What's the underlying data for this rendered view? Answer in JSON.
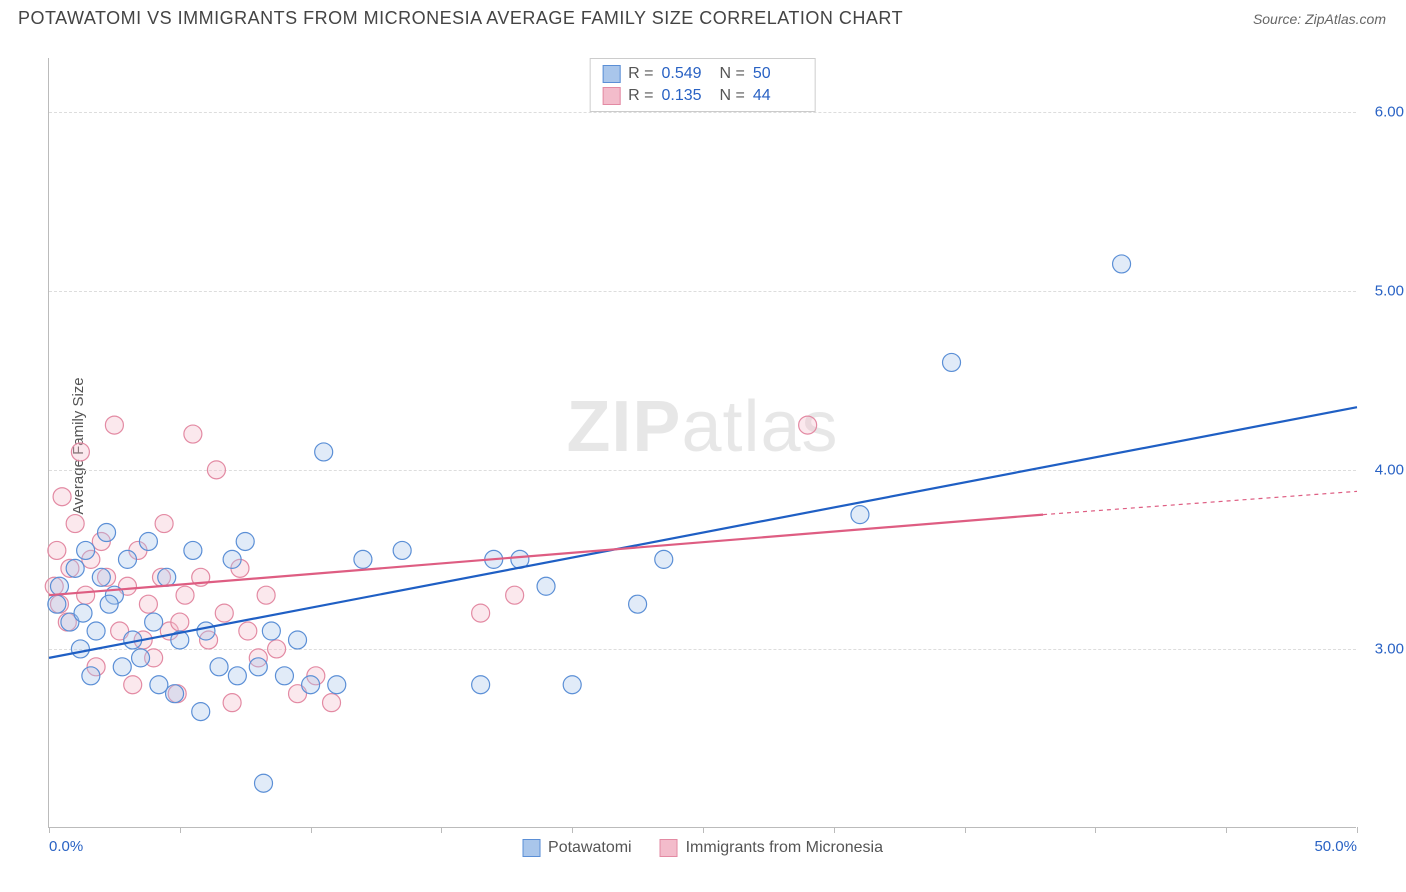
{
  "title": "POTAWATOMI VS IMMIGRANTS FROM MICRONESIA AVERAGE FAMILY SIZE CORRELATION CHART",
  "source_label": "Source:",
  "source_value": "ZipAtlas.com",
  "y_axis_label": "Average Family Size",
  "watermark_bold": "ZIP",
  "watermark_rest": "atlas",
  "chart": {
    "type": "scatter",
    "xlim": [
      0,
      50
    ],
    "ylim": [
      2.0,
      6.3
    ],
    "x_tick_positions": [
      0,
      5,
      10,
      15,
      20,
      25,
      30,
      35,
      40,
      45,
      50
    ],
    "x_tick_labels_shown": {
      "0": "0.0%",
      "50": "50.0%"
    },
    "y_gridlines": [
      3.0,
      4.0,
      5.0,
      6.0
    ],
    "y_tick_labels": {
      "3.0": "3.00",
      "4.0": "4.00",
      "5.0": "5.00",
      "6.0": "6.00"
    },
    "grid_color": "#dddddd",
    "axis_color": "#bbbbbb",
    "tick_label_color": "#2962c4",
    "marker_radius": 9,
    "marker_stroke_width": 1.2,
    "marker_fill_opacity": 0.35,
    "trend_line_width": 2.2,
    "series": [
      {
        "name": "Potawatomi",
        "legend_label": "Potawatomi",
        "color_stroke": "#5b8fd6",
        "color_fill": "#a9c6eb",
        "trend_color": "#1f5fc4",
        "R_label": "R =",
        "R": "0.549",
        "N_label": "N =",
        "N": "50",
        "trend": {
          "x1": 0,
          "y1": 2.95,
          "x2": 50,
          "y2": 4.35
        },
        "points": [
          [
            0.3,
            3.25
          ],
          [
            0.4,
            3.35
          ],
          [
            0.8,
            3.15
          ],
          [
            1.0,
            3.45
          ],
          [
            1.2,
            3.0
          ],
          [
            1.4,
            3.55
          ],
          [
            1.6,
            2.85
          ],
          [
            1.8,
            3.1
          ],
          [
            2.0,
            3.4
          ],
          [
            2.2,
            3.65
          ],
          [
            2.5,
            3.3
          ],
          [
            2.8,
            2.9
          ],
          [
            3.0,
            3.5
          ],
          [
            3.2,
            3.05
          ],
          [
            3.5,
            2.95
          ],
          [
            3.8,
            3.6
          ],
          [
            4.0,
            3.15
          ],
          [
            4.2,
            2.8
          ],
          [
            4.5,
            3.4
          ],
          [
            4.8,
            2.75
          ],
          [
            5.0,
            3.05
          ],
          [
            5.5,
            3.55
          ],
          [
            5.8,
            2.65
          ],
          [
            6.0,
            3.1
          ],
          [
            6.5,
            2.9
          ],
          [
            7.0,
            3.5
          ],
          [
            7.2,
            2.85
          ],
          [
            7.5,
            3.6
          ],
          [
            8.0,
            2.9
          ],
          [
            8.2,
            2.25
          ],
          [
            8.5,
            3.1
          ],
          [
            9.0,
            2.85
          ],
          [
            9.5,
            3.05
          ],
          [
            10.0,
            2.8
          ],
          [
            10.5,
            4.1
          ],
          [
            11.0,
            2.8
          ],
          [
            12.0,
            3.5
          ],
          [
            13.5,
            3.55
          ],
          [
            16.5,
            2.8
          ],
          [
            17.0,
            3.5
          ],
          [
            18.0,
            3.5
          ],
          [
            19.0,
            3.35
          ],
          [
            20.0,
            2.8
          ],
          [
            22.5,
            3.25
          ],
          [
            23.5,
            3.5
          ],
          [
            31.0,
            3.75
          ],
          [
            34.5,
            4.6
          ],
          [
            41.0,
            5.15
          ],
          [
            1.3,
            3.2
          ],
          [
            2.3,
            3.25
          ]
        ]
      },
      {
        "name": "Immigrants from Micronesia",
        "legend_label": "Immigrants from Micronesia",
        "color_stroke": "#e38aa3",
        "color_fill": "#f3bccb",
        "trend_color": "#de5d82",
        "R_label": "R =",
        "R": "0.135",
        "N_label": "N =",
        "N": "44",
        "trend": {
          "x1": 0,
          "y1": 3.3,
          "x2": 38,
          "y2": 3.75,
          "x2_ext": 50,
          "y2_ext": 3.88
        },
        "points": [
          [
            0.2,
            3.35
          ],
          [
            0.3,
            3.55
          ],
          [
            0.4,
            3.25
          ],
          [
            0.5,
            3.85
          ],
          [
            0.7,
            3.15
          ],
          [
            0.8,
            3.45
          ],
          [
            1.0,
            3.7
          ],
          [
            1.2,
            4.1
          ],
          [
            1.4,
            3.3
          ],
          [
            1.6,
            3.5
          ],
          [
            1.8,
            2.9
          ],
          [
            2.0,
            3.6
          ],
          [
            2.2,
            3.4
          ],
          [
            2.5,
            4.25
          ],
          [
            2.7,
            3.1
          ],
          [
            3.0,
            3.35
          ],
          [
            3.2,
            2.8
          ],
          [
            3.4,
            3.55
          ],
          [
            3.6,
            3.05
          ],
          [
            3.8,
            3.25
          ],
          [
            4.0,
            2.95
          ],
          [
            4.3,
            3.4
          ],
          [
            4.6,
            3.1
          ],
          [
            4.9,
            2.75
          ],
          [
            5.2,
            3.3
          ],
          [
            5.5,
            4.2
          ],
          [
            5.8,
            3.4
          ],
          [
            6.1,
            3.05
          ],
          [
            6.4,
            4.0
          ],
          [
            6.7,
            3.2
          ],
          [
            7.0,
            2.7
          ],
          [
            7.3,
            3.45
          ],
          [
            7.6,
            3.1
          ],
          [
            8.0,
            2.95
          ],
          [
            8.3,
            3.3
          ],
          [
            8.7,
            3.0
          ],
          [
            9.5,
            2.75
          ],
          [
            10.2,
            2.85
          ],
          [
            10.8,
            2.7
          ],
          [
            16.5,
            3.2
          ],
          [
            17.8,
            3.3
          ],
          [
            29.0,
            4.25
          ],
          [
            4.4,
            3.7
          ],
          [
            5.0,
            3.15
          ]
        ]
      }
    ]
  },
  "legend": {
    "series1_label": "Potawatomi",
    "series2_label": "Immigrants from Micronesia"
  }
}
